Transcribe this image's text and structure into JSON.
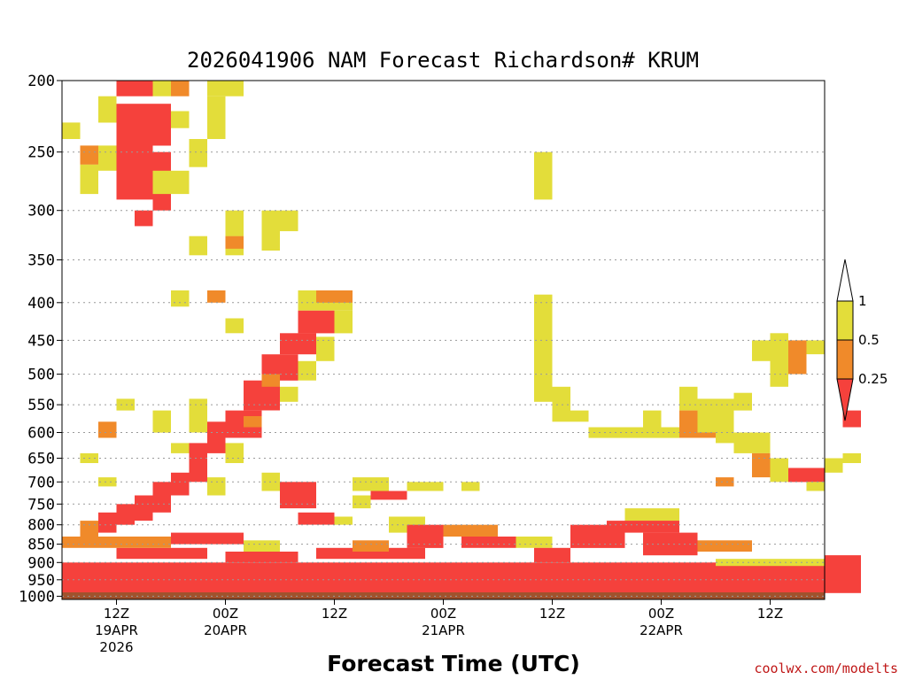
{
  "chart_data": {
    "type": "heatmap",
    "title": "2026041906 NAM Forecast Richardson# KRUM",
    "xlabel": "Forecast Time (UTC)",
    "ylabel": "",
    "credit": "coolwx.com/modelts",
    "y_scale": "log-pressure (inverted)",
    "ylim": [
      1010,
      200
    ],
    "xlim_hours": [
      0,
      84
    ],
    "grid": "dotted horizontal at labeled pressure levels",
    "y_ticks": [
      "200",
      "250",
      "300",
      "350",
      "400",
      "450",
      "500",
      "550",
      "600",
      "650",
      "700",
      "750",
      "800",
      "850",
      "900",
      "950",
      "1000"
    ],
    "x_ticks": [
      {
        "hour": 6,
        "lines": [
          "12Z",
          "19APR",
          "2026"
        ]
      },
      {
        "hour": 18,
        "lines": [
          "00Z",
          "20APR"
        ]
      },
      {
        "hour": 30,
        "lines": [
          "12Z"
        ]
      },
      {
        "hour": 42,
        "lines": [
          "00Z",
          "21APR"
        ]
      },
      {
        "hour": 54,
        "lines": [
          "12Z"
        ]
      },
      {
        "hour": 66,
        "lines": [
          "00Z",
          "22APR"
        ]
      },
      {
        "hour": 78,
        "lines": [
          "12Z"
        ]
      }
    ],
    "legend": {
      "placement": "right",
      "levels": [
        "1",
        "0.5",
        "0.25"
      ],
      "bins": [
        {
          "range": "> 1",
          "color": "#ffffff"
        },
        {
          "range": "0.5 - 1",
          "color": "#e3dd3a"
        },
        {
          "range": "0.25 - 0.5",
          "color": "#f08a2a"
        },
        {
          "range": "< 0.25",
          "color": "#f5413c"
        }
      ]
    },
    "ground": {
      "pressure_top": 988,
      "color": "#a0522d"
    },
    "colors": {
      "red": "#f5413c",
      "orange": "#f08a2a",
      "yellow": "#e3dd3a"
    },
    "cells": [
      {
        "x": 3,
        "x2": 5,
        "y": 200,
        "y2": 210,
        "v": "r"
      },
      {
        "x": 5,
        "x2": 6,
        "y": 200,
        "y2": 210,
        "v": "y"
      },
      {
        "x": 6,
        "x2": 7,
        "y": 200,
        "y2": 210,
        "v": "o"
      },
      {
        "x": 8,
        "x2": 10,
        "y": 200,
        "y2": 210,
        "v": "y"
      },
      {
        "x": 2,
        "x2": 3,
        "y": 210,
        "y2": 228,
        "v": "y"
      },
      {
        "x": 3,
        "x2": 6,
        "y": 215,
        "y2": 245,
        "v": "r"
      },
      {
        "x": 6,
        "x2": 7,
        "y": 220,
        "y2": 232,
        "v": "y"
      },
      {
        "x": 8,
        "x2": 9,
        "y": 210,
        "y2": 240,
        "v": "y"
      },
      {
        "x": 0,
        "x2": 1,
        "y": 228,
        "y2": 240,
        "v": "y"
      },
      {
        "x": 1,
        "x2": 2,
        "y": 245,
        "y2": 260,
        "v": "o"
      },
      {
        "x": 1,
        "x2": 2,
        "y": 260,
        "y2": 285,
        "v": "y"
      },
      {
        "x": 2,
        "x2": 3,
        "y": 245,
        "y2": 265,
        "v": "y"
      },
      {
        "x": 3,
        "x2": 5,
        "y": 245,
        "y2": 290,
        "v": "r"
      },
      {
        "x": 5,
        "x2": 6,
        "y": 250,
        "y2": 300,
        "v": "r"
      },
      {
        "x": 4,
        "x2": 5,
        "y": 300,
        "y2": 315,
        "v": "r"
      },
      {
        "x": 5,
        "x2": 6,
        "y": 265,
        "y2": 285,
        "v": "y"
      },
      {
        "x": 6,
        "x2": 7,
        "y": 265,
        "y2": 285,
        "v": "y"
      },
      {
        "x": 7,
        "x2": 8,
        "y": 240,
        "y2": 262,
        "v": "y"
      },
      {
        "x": 9,
        "x2": 10,
        "y": 300,
        "y2": 325,
        "v": "y"
      },
      {
        "x": 9,
        "x2": 10,
        "y": 325,
        "y2": 345,
        "v": "y"
      },
      {
        "x": 9,
        "x2": 10,
        "y": 325,
        "y2": 338,
        "v": "o"
      },
      {
        "x": 7,
        "x2": 8,
        "y": 325,
        "y2": 345,
        "v": "y"
      },
      {
        "x": 6,
        "x2": 7,
        "y": 385,
        "y2": 405,
        "v": "y"
      },
      {
        "x": 8,
        "x2": 9,
        "y": 385,
        "y2": 400,
        "v": "o"
      },
      {
        "x": 9,
        "x2": 10,
        "y": 420,
        "y2": 440,
        "v": "y"
      },
      {
        "x": 11,
        "x2": 12,
        "y": 300,
        "y2": 340,
        "v": "y"
      },
      {
        "x": 12,
        "x2": 13,
        "y": 300,
        "y2": 320,
        "v": "y"
      },
      {
        "x": 13,
        "x2": 16,
        "y": 385,
        "y2": 410,
        "v": "y"
      },
      {
        "x": 14,
        "x2": 16,
        "y": 385,
        "y2": 400,
        "v": "o"
      },
      {
        "x": 13,
        "x2": 15,
        "y": 410,
        "y2": 440,
        "v": "r"
      },
      {
        "x": 15,
        "x2": 16,
        "y": 410,
        "y2": 440,
        "v": "y"
      },
      {
        "x": 12,
        "x2": 14,
        "y": 440,
        "y2": 470,
        "v": "r"
      },
      {
        "x": 14,
        "x2": 15,
        "y": 445,
        "y2": 480,
        "v": "y"
      },
      {
        "x": 11,
        "x2": 13,
        "y": 470,
        "y2": 510,
        "v": "r"
      },
      {
        "x": 13,
        "x2": 14,
        "y": 480,
        "y2": 510,
        "v": "y"
      },
      {
        "x": 10,
        "x2": 12,
        "y": 510,
        "y2": 560,
        "v": "r"
      },
      {
        "x": 11,
        "x2": 12,
        "y": 500,
        "y2": 520,
        "v": "o"
      },
      {
        "x": 12,
        "x2": 13,
        "y": 520,
        "y2": 545,
        "v": "y"
      },
      {
        "x": 9,
        "x2": 11,
        "y": 560,
        "y2": 610,
        "v": "r"
      },
      {
        "x": 10,
        "x2": 11,
        "y": 570,
        "y2": 590,
        "v": "o"
      },
      {
        "x": 8,
        "x2": 9,
        "y": 580,
        "y2": 640,
        "v": "r"
      },
      {
        "x": 7,
        "x2": 8,
        "y": 620,
        "y2": 700,
        "v": "r"
      },
      {
        "x": 6,
        "x2": 7,
        "y": 680,
        "y2": 730,
        "v": "r"
      },
      {
        "x": 5,
        "x2": 6,
        "y": 700,
        "y2": 770,
        "v": "r"
      },
      {
        "x": 4,
        "x2": 5,
        "y": 730,
        "y2": 790,
        "v": "r"
      },
      {
        "x": 3,
        "x2": 4,
        "y": 750,
        "y2": 800,
        "v": "r"
      },
      {
        "x": 2,
        "x2": 3,
        "y": 770,
        "y2": 820,
        "v": "r"
      },
      {
        "x": 1,
        "x2": 2,
        "y": 790,
        "y2": 830,
        "v": "o"
      },
      {
        "x": 7,
        "x2": 8,
        "y": 540,
        "y2": 600,
        "v": "y"
      },
      {
        "x": 5,
        "x2": 6,
        "y": 560,
        "y2": 600,
        "v": "y"
      },
      {
        "x": 3,
        "x2": 4,
        "y": 540,
        "y2": 560,
        "v": "y"
      },
      {
        "x": 2,
        "x2": 3,
        "y": 580,
        "y2": 610,
        "v": "o"
      },
      {
        "x": 1,
        "x2": 2,
        "y": 640,
        "y2": 660,
        "v": "y"
      },
      {
        "x": 2,
        "x2": 3,
        "y": 690,
        "y2": 710,
        "v": "y"
      },
      {
        "x": 6,
        "x2": 7,
        "y": 620,
        "y2": 640,
        "v": "y"
      },
      {
        "x": 8,
        "x2": 9,
        "y": 690,
        "y2": 730,
        "v": "y"
      },
      {
        "x": 9,
        "x2": 10,
        "y": 620,
        "y2": 660,
        "v": "y"
      },
      {
        "x": 12,
        "x2": 14,
        "y": 700,
        "y2": 760,
        "v": "r"
      },
      {
        "x": 11,
        "x2": 12,
        "y": 680,
        "y2": 720,
        "v": "y"
      },
      {
        "x": 13,
        "x2": 15,
        "y": 770,
        "y2": 800,
        "v": "r"
      },
      {
        "x": 15,
        "x2": 16,
        "y": 780,
        "y2": 800,
        "v": "y"
      },
      {
        "x": 16,
        "x2": 18,
        "y": 690,
        "y2": 720,
        "v": "y"
      },
      {
        "x": 17,
        "x2": 19,
        "y": 720,
        "y2": 740,
        "v": "r"
      },
      {
        "x": 19,
        "x2": 21,
        "y": 700,
        "y2": 720,
        "v": "y"
      },
      {
        "x": 22,
        "x2": 23,
        "y": 700,
        "y2": 720,
        "v": "y"
      },
      {
        "x": 16,
        "x2": 17,
        "y": 730,
        "y2": 760,
        "v": "y"
      },
      {
        "x": 18,
        "x2": 20,
        "y": 780,
        "y2": 820,
        "v": "y"
      },
      {
        "x": 19,
        "x2": 21,
        "y": 800,
        "y2": 860,
        "v": "r"
      },
      {
        "x": 21,
        "x2": 24,
        "y": 800,
        "y2": 830,
        "v": "o"
      },
      {
        "x": 22,
        "x2": 25,
        "y": 830,
        "y2": 860,
        "v": "r"
      },
      {
        "x": 25,
        "x2": 27,
        "y": 830,
        "y2": 860,
        "v": "y"
      },
      {
        "x": 26,
        "x2": 27,
        "y": 250,
        "y2": 290,
        "v": "y"
      },
      {
        "x": 26,
        "x2": 27,
        "y": 390,
        "y2": 500,
        "v": "y"
      },
      {
        "x": 26,
        "x2": 27,
        "y": 500,
        "y2": 545,
        "v": "y"
      },
      {
        "x": 27,
        "x2": 28,
        "y": 520,
        "y2": 580,
        "v": "y"
      },
      {
        "x": 28,
        "x2": 29,
        "y": 560,
        "y2": 580,
        "v": "y"
      },
      {
        "x": 29,
        "x2": 30,
        "y": 590,
        "y2": 610,
        "v": "y"
      },
      {
        "x": 30,
        "x2": 34,
        "y": 590,
        "y2": 610,
        "v": "y"
      },
      {
        "x": 32,
        "x2": 33,
        "y": 560,
        "y2": 590,
        "v": "y"
      },
      {
        "x": 34,
        "x2": 35,
        "y": 520,
        "y2": 560,
        "v": "y"
      },
      {
        "x": 34,
        "x2": 36,
        "y": 560,
        "y2": 610,
        "v": "o"
      },
      {
        "x": 35,
        "x2": 37,
        "y": 540,
        "y2": 600,
        "v": "y"
      },
      {
        "x": 36,
        "x2": 37,
        "y": 590,
        "y2": 620,
        "v": "y"
      },
      {
        "x": 37,
        "x2": 39,
        "y": 600,
        "y2": 640,
        "v": "y"
      },
      {
        "x": 38,
        "x2": 39,
        "y": 640,
        "y2": 690,
        "v": "o"
      },
      {
        "x": 39,
        "x2": 40,
        "y": 650,
        "y2": 700,
        "v": "y"
      },
      {
        "x": 37,
        "x2": 38,
        "y": 530,
        "y2": 560,
        "v": "y"
      },
      {
        "x": 39,
        "x2": 40,
        "y": 440,
        "y2": 520,
        "v": "y"
      },
      {
        "x": 40,
        "x2": 41,
        "y": 450,
        "y2": 500,
        "v": "o"
      },
      {
        "x": 41,
        "x2": 42,
        "y": 450,
        "y2": 470,
        "v": "y"
      },
      {
        "x": 38,
        "x2": 39,
        "y": 450,
        "y2": 480,
        "v": "y"
      },
      {
        "x": 40,
        "x2": 42,
        "y": 670,
        "y2": 700,
        "v": "r"
      },
      {
        "x": 42,
        "x2": 43,
        "y": 650,
        "y2": 680,
        "v": "y"
      },
      {
        "x": 41,
        "x2": 42,
        "y": 700,
        "y2": 720,
        "v": "y"
      },
      {
        "x": 36,
        "x2": 37,
        "y": 690,
        "y2": 710,
        "v": "o"
      },
      {
        "x": 31,
        "x2": 34,
        "y": 760,
        "y2": 800,
        "v": "y"
      },
      {
        "x": 30,
        "x2": 34,
        "y": 790,
        "y2": 820,
        "v": "r"
      },
      {
        "x": 28,
        "x2": 31,
        "y": 800,
        "y2": 860,
        "v": "r"
      },
      {
        "x": 32,
        "x2": 35,
        "y": 820,
        "y2": 880,
        "v": "r"
      },
      {
        "x": 35,
        "x2": 38,
        "y": 840,
        "y2": 870,
        "v": "o"
      },
      {
        "x": 26,
        "x2": 28,
        "y": 860,
        "y2": 900,
        "v": "r"
      },
      {
        "x": 43,
        "x2": 44,
        "y": 560,
        "y2": 590,
        "v": "r"
      },
      {
        "x": 43,
        "x2": 44,
        "y": 640,
        "y2": 660,
        "v": "y"
      },
      {
        "x": 42,
        "x2": 44,
        "y": 880,
        "y2": 960,
        "v": "r"
      },
      {
        "x": 0,
        "x2": 44,
        "y": 900,
        "y2": 990,
        "v": "r"
      },
      {
        "x": 3,
        "x2": 8,
        "y": 860,
        "y2": 890,
        "v": "r"
      },
      {
        "x": 9,
        "x2": 13,
        "y": 870,
        "y2": 900,
        "v": "r"
      },
      {
        "x": 14,
        "x2": 20,
        "y": 860,
        "y2": 890,
        "v": "r"
      },
      {
        "x": 0,
        "x2": 6,
        "y": 830,
        "y2": 860,
        "v": "o"
      },
      {
        "x": 6,
        "x2": 10,
        "y": 820,
        "y2": 850,
        "v": "r"
      },
      {
        "x": 10,
        "x2": 12,
        "y": 840,
        "y2": 870,
        "v": "y"
      },
      {
        "x": 16,
        "x2": 18,
        "y": 840,
        "y2": 870,
        "v": "o"
      },
      {
        "x": 36,
        "x2": 42,
        "y": 890,
        "y2": 910,
        "v": "y"
      }
    ]
  }
}
